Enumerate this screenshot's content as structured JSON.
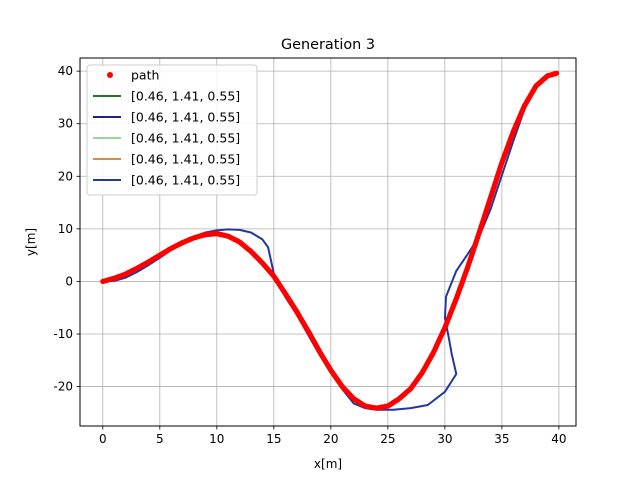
{
  "chart_data": {
    "type": "line",
    "title": "Generation 3",
    "xlabel": "x[m]",
    "ylabel": "y[m]",
    "xlim": [
      -2,
      41.5
    ],
    "ylim": [
      -27.5,
      42.5
    ],
    "xticks": [
      0,
      5,
      10,
      15,
      20,
      25,
      30,
      35,
      40
    ],
    "yticks": [
      -20,
      -10,
      0,
      10,
      20,
      30,
      40
    ],
    "grid": true,
    "legend_position": "top-left",
    "path": {
      "name": "path",
      "color": "#ff0000",
      "x": [
        0,
        1,
        2,
        3,
        4,
        5,
        6,
        7,
        8,
        9,
        10,
        11,
        12,
        13,
        14,
        15,
        16,
        17,
        18,
        19,
        20,
        21,
        22,
        23,
        24,
        25,
        26,
        27,
        28,
        29,
        30,
        31,
        32,
        33,
        34,
        35,
        36,
        37,
        38,
        39,
        39.8
      ],
      "y": [
        0,
        0.6,
        1.4,
        2.5,
        3.7,
        5.0,
        6.3,
        7.4,
        8.3,
        8.9,
        9.1,
        8.6,
        7.5,
        5.7,
        3.5,
        1.0,
        -2.3,
        -5.7,
        -9.4,
        -13.3,
        -16.9,
        -20.0,
        -22.3,
        -23.7,
        -24.1,
        -23.7,
        -22.3,
        -20.4,
        -17.4,
        -13.5,
        -8.8,
        -3.3,
        2.7,
        9.2,
        15.9,
        22.6,
        28.5,
        33.5,
        37.2,
        39.1,
        39.6
      ]
    },
    "series": [
      {
        "name": "[0.46, 1.41, 0.55]",
        "color": "#1f7a1f",
        "x": [],
        "y": []
      },
      {
        "name": "[0.46, 1.41, 0.55]",
        "color": "#1a237e",
        "x": [],
        "y": []
      },
      {
        "name": "[0.46, 1.41, 0.55]",
        "color": "#98d598",
        "x": [],
        "y": []
      },
      {
        "name": "[0.46, 1.41, 0.55]",
        "color": "#d98c4a",
        "x": [],
        "y": []
      },
      {
        "name": "[0.46, 1.41, 0.55]",
        "color": "#22389a",
        "x": [
          0,
          1,
          2,
          3,
          4,
          5,
          6,
          7,
          8,
          9,
          10,
          11,
          12,
          13,
          14,
          14.5,
          15,
          16,
          17,
          18,
          19,
          20,
          21,
          22,
          23,
          24,
          25,
          25.5,
          27,
          28.5,
          30,
          31,
          30.6,
          30.3,
          30,
          30.1,
          31,
          32,
          33,
          34,
          35,
          36,
          37,
          38,
          39,
          39.8
        ],
        "y": [
          0,
          0.1,
          0.7,
          1.8,
          3.1,
          4.5,
          6.0,
          7.4,
          8.5,
          9.3,
          9.7,
          9.9,
          9.8,
          9.3,
          8.0,
          6.5,
          1.5,
          -2.9,
          -6.3,
          -10.1,
          -13.9,
          -17.4,
          -20.5,
          -23.2,
          -24.1,
          -24.4,
          -24.4,
          -24.4,
          -24.1,
          -23.5,
          -21.0,
          -17.6,
          -13.8,
          -10.2,
          -7.0,
          -2.9,
          2.0,
          5.2,
          8.5,
          13.7,
          20.2,
          26.7,
          32.9,
          36.8,
          38.9,
          39.6
        ]
      }
    ]
  }
}
